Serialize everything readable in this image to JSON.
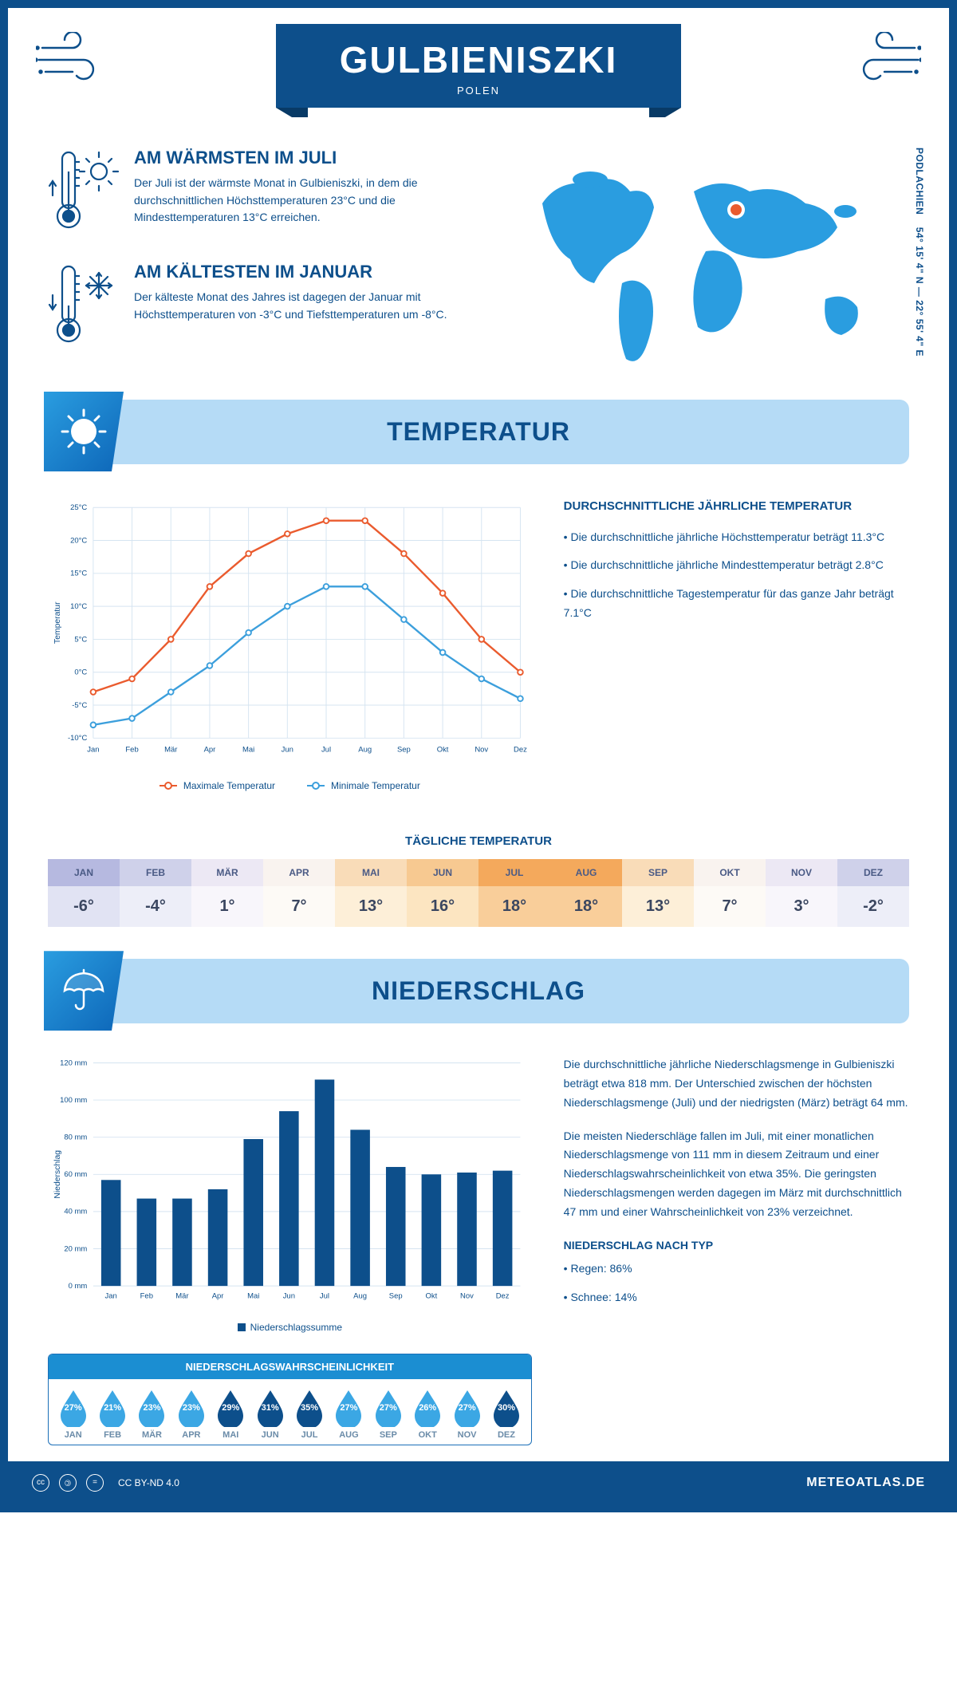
{
  "colors": {
    "primary": "#0d4f8b",
    "primary_dark": "#083a66",
    "banner_bg": "#b5dbf6",
    "icon_grad_a": "#2a9de0",
    "icon_grad_b": "#0d66b8",
    "grid": "#bcd3e6",
    "max_line": "#ea5b2e",
    "min_line": "#3c9fdc",
    "bar": "#0d4f8b",
    "prob_header": "#1b8ed2",
    "drop_light": "#3ba7e4",
    "drop_dark": "#0d4f8b",
    "white": "#ffffff"
  },
  "header": {
    "title": "GULBIENISZKI",
    "subtitle": "POLEN"
  },
  "coords": {
    "text": "54° 15' 4\" N — 22° 55' 4\" E",
    "region": "PODLACHIEN"
  },
  "facts": {
    "warm": {
      "title": "AM WÄRMSTEN IM JULI",
      "text": "Der Juli ist der wärmste Monat in Gulbieniszki, in dem die durchschnittlichen Höchsttemperaturen 23°C und die Mindesttemperaturen 13°C erreichen."
    },
    "cold": {
      "title": "AM KÄLTESTEN IM JANUAR",
      "text": "Der kälteste Monat des Jahres ist dagegen der Januar mit Höchsttemperaturen von -3°C und Tiefsttemperaturen um -8°C."
    }
  },
  "temp_section": {
    "banner": "TEMPERATUR",
    "info_title": "DURCHSCHNITTLICHE JÄHRLICHE TEMPERATUR",
    "bullets": [
      "• Die durchschnittliche jährliche Höchsttemperatur beträgt 11.3°C",
      "• Die durchschnittliche jährliche Mindesttemperatur beträgt 2.8°C",
      "• Die durchschnittliche Tagestemperatur für das ganze Jahr beträgt 7.1°C"
    ],
    "chart": {
      "type": "line",
      "months": [
        "Jan",
        "Feb",
        "Mär",
        "Apr",
        "Mai",
        "Jun",
        "Jul",
        "Aug",
        "Sep",
        "Okt",
        "Nov",
        "Dez"
      ],
      "max": [
        -3,
        -1,
        5,
        13,
        18,
        21,
        23,
        23,
        18,
        12,
        5,
        0
      ],
      "min": [
        -8,
        -7,
        -3,
        1,
        6,
        10,
        13,
        13,
        8,
        3,
        -1,
        -4
      ],
      "ylim": [
        -10,
        25
      ],
      "ytick_step": 5,
      "ytick_labels": [
        "-10°C",
        "-5°C",
        "0°C",
        "5°C",
        "10°C",
        "15°C",
        "20°C",
        "25°C"
      ],
      "ylabel": "Temperatur",
      "max_line_color": "#ea5b2e",
      "min_line_color": "#3c9fdc",
      "grid_color": "#d5e4f1",
      "line_width": 2.5,
      "marker_r": 3.5,
      "legend": {
        "max": "Maximale Temperatur",
        "min": "Minimale Temperatur"
      }
    },
    "daily_title": "TÄGLICHE TEMPERATUR",
    "daily": {
      "months": [
        "JAN",
        "FEB",
        "MÄR",
        "APR",
        "MAI",
        "JUN",
        "JUL",
        "AUG",
        "SEP",
        "OKT",
        "NOV",
        "DEZ"
      ],
      "values": [
        "-6°",
        "-4°",
        "1°",
        "7°",
        "13°",
        "16°",
        "18°",
        "18°",
        "13°",
        "7°",
        "3°",
        "-2°"
      ],
      "head_colors": [
        "#b6b9e0",
        "#cfd1ea",
        "#ece8f4",
        "#f9f3ef",
        "#f9dcb8",
        "#f7c991",
        "#f4a95c",
        "#f4a95c",
        "#f9dcb8",
        "#f9f3ef",
        "#ece8f4",
        "#cfd1ea"
      ],
      "val_colors": [
        "#e1e3f3",
        "#edeef8",
        "#f8f6fb",
        "#fdfaf6",
        "#fdefd8",
        "#fce5c1",
        "#f9ce9a",
        "#f9ce9a",
        "#fdefd8",
        "#fdfaf6",
        "#f8f6fb",
        "#edeef8"
      ],
      "text_color": "#4a5a85",
      "val_text_color": "#3a4660"
    }
  },
  "precip_section": {
    "banner": "NIEDERSCHLAG",
    "chart": {
      "type": "bar",
      "months": [
        "Jan",
        "Feb",
        "Mär",
        "Apr",
        "Mai",
        "Jun",
        "Jul",
        "Aug",
        "Sep",
        "Okt",
        "Nov",
        "Dez"
      ],
      "values": [
        57,
        47,
        47,
        52,
        79,
        94,
        111,
        84,
        64,
        60,
        61,
        62
      ],
      "ylim": [
        0,
        120
      ],
      "ytick_step": 20,
      "ytick_labels": [
        "0 mm",
        "20 mm",
        "40 mm",
        "60 mm",
        "80 mm",
        "100 mm",
        "120 mm"
      ],
      "ylabel": "Niederschlag",
      "bar_color": "#0d4f8b",
      "grid_color": "#d5e4f1",
      "bar_width_ratio": 0.55,
      "legend": "Niederschlagssumme"
    },
    "prob": {
      "title": "NIEDERSCHLAGSWAHRSCHEINLICHKEIT",
      "months": [
        "JAN",
        "FEB",
        "MÄR",
        "APR",
        "MAI",
        "JUN",
        "JUL",
        "AUG",
        "SEP",
        "OKT",
        "NOV",
        "DEZ"
      ],
      "values": [
        "27%",
        "21%",
        "23%",
        "23%",
        "29%",
        "31%",
        "35%",
        "27%",
        "27%",
        "26%",
        "27%",
        "30%"
      ],
      "dark_threshold": 29,
      "drop_light": "#3ba7e4",
      "drop_dark": "#0d4f8b"
    },
    "para1": "Die durchschnittliche jährliche Niederschlagsmenge in Gulbieniszki beträgt etwa 818 mm. Der Unterschied zwischen der höchsten Niederschlagsmenge (Juli) und der niedrigsten (März) beträgt 64 mm.",
    "para2": "Die meisten Niederschläge fallen im Juli, mit einer monatlichen Niederschlagsmenge von 111 mm in diesem Zeitraum und einer Niederschlagswahrscheinlichkeit von etwa 35%. Die geringsten Niederschlagsmengen werden dagegen im März mit durchschnittlich 47 mm und einer Wahrscheinlichkeit von 23% verzeichnet.",
    "type_title": "NIEDERSCHLAG NACH TYP",
    "types": [
      "• Regen: 86%",
      "• Schnee: 14%"
    ]
  },
  "footer": {
    "license": "CC BY-ND 4.0",
    "brand": "METEOATLAS.DE"
  }
}
